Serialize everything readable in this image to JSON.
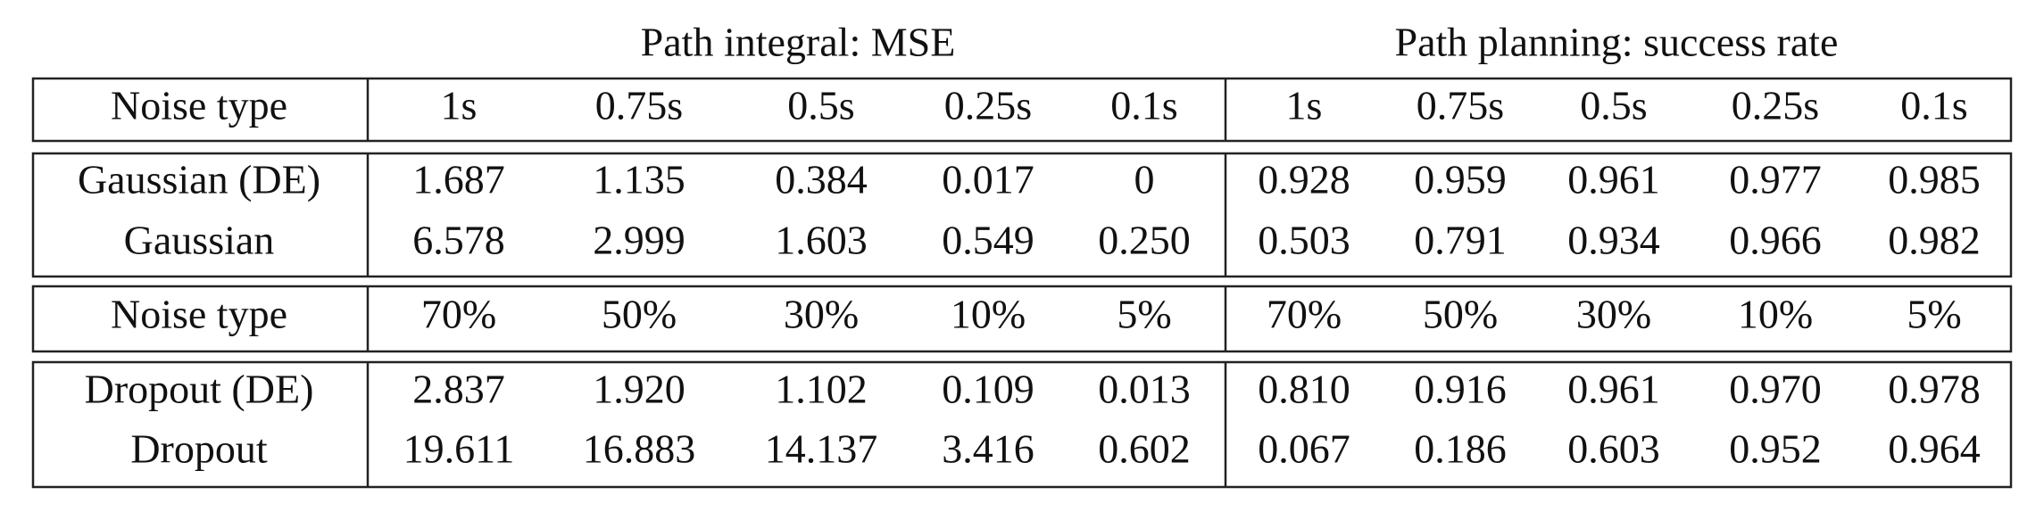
{
  "group_headers": [
    "Path integral: MSE",
    "Path planning: success rate"
  ],
  "sections": [
    {
      "header": [
        "Noise type",
        "1s",
        "0.75s",
        "0.5s",
        "0.25s",
        "0.1s",
        "1s",
        "0.75s",
        "0.5s",
        "0.25s",
        "0.1s"
      ],
      "rows": [
        [
          "Gaussian (DE)",
          "1.687",
          "1.135",
          "0.384",
          "0.017",
          "0",
          "0.928",
          "0.959",
          "0.961",
          "0.977",
          "0.985"
        ],
        [
          "Gaussian",
          "6.578",
          "2.999",
          "1.603",
          "0.549",
          "0.250",
          "0.503",
          "0.791",
          "0.934",
          "0.966",
          "0.982"
        ]
      ]
    },
    {
      "header": [
        "Noise type",
        "70%",
        "50%",
        "30%",
        "10%",
        "5%",
        "70%",
        "50%",
        "30%",
        "10%",
        "5%"
      ],
      "rows": [
        [
          "Dropout (DE)",
          "2.837",
          "1.920",
          "1.102",
          "0.109",
          "0.013",
          "0.810",
          "0.916",
          "0.961",
          "0.970",
          "0.978"
        ],
        [
          "Dropout",
          "19.611",
          "16.883",
          "14.137",
          "3.416",
          "0.602",
          "0.067",
          "0.186",
          "0.603",
          "0.952",
          "0.964"
        ]
      ]
    }
  ]
}
